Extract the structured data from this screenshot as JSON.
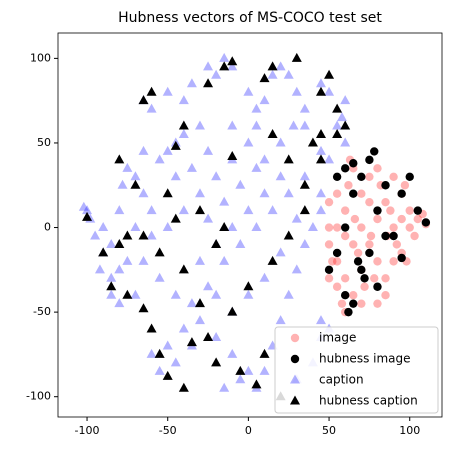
{
  "chart_data": {
    "type": "scatter",
    "title": "Hubness vectors of MS-COCO test set",
    "xlim": [
      -118,
      120
    ],
    "ylim": [
      -112,
      115
    ],
    "xticks": [
      -100,
      -50,
      0,
      50,
      100
    ],
    "yticks": [
      -100,
      -50,
      0,
      50,
      100
    ],
    "legend": "lower right",
    "series": [
      {
        "name": "image",
        "color": "red",
        "marker": "o",
        "alpha": 0.3,
        "x": [
          50,
          55,
          55,
          60,
          60,
          65,
          70,
          60,
          70,
          75,
          80,
          65,
          70,
          75,
          80,
          85,
          90,
          95,
          100,
          105,
          100,
          95,
          90,
          85,
          80,
          75,
          65,
          70,
          60,
          55,
          50,
          50,
          55,
          85,
          80,
          90,
          95,
          110,
          103,
          88,
          78,
          68,
          62,
          72,
          82,
          92,
          97,
          58,
          66,
          76,
          86,
          50,
          52,
          63,
          98,
          108
        ],
        "y": [
          -10,
          -20,
          0,
          10,
          -30,
          -40,
          -45,
          -50,
          20,
          30,
          35,
          35,
          0,
          -10,
          -20,
          -30,
          -20,
          -15,
          0,
          5,
          10,
          20,
          30,
          15,
          5,
          15,
          -10,
          -25,
          -5,
          -35,
          -30,
          15,
          20,
          -40,
          -45,
          0,
          5,
          2,
          -5,
          10,
          -30,
          -15,
          25,
          -35,
          25,
          -10,
          25,
          -45,
          5,
          -5,
          -5,
          0,
          -20,
          40,
          -20,
          8
        ]
      },
      {
        "name": "hubness image",
        "color": "black",
        "marker": "o",
        "alpha": 1,
        "x": [
          60,
          65,
          75,
          78,
          70,
          100,
          105,
          110,
          95,
          80,
          85,
          70,
          60,
          65,
          72,
          80,
          90,
          55,
          50,
          60,
          75,
          65,
          55,
          85,
          62,
          68,
          95
        ],
        "y": [
          35,
          38,
          40,
          45,
          30,
          30,
          10,
          3,
          20,
          10,
          -5,
          -25,
          -40,
          -45,
          -30,
          -35,
          -5,
          -15,
          -25,
          0,
          -15,
          20,
          30,
          25,
          -50,
          -20,
          -18
        ]
      },
      {
        "name": "caption",
        "color": "blue",
        "marker": "^",
        "alpha": 0.3,
        "x": [
          -100,
          -98,
          -102,
          -95,
          -90,
          -92,
          -85,
          -80,
          -85,
          -75,
          -80,
          -78,
          -75,
          -70,
          -65,
          -55,
          -50,
          -45,
          -40,
          -30,
          -60,
          -50,
          -65,
          -40,
          -35,
          -20,
          -25,
          -15,
          -10,
          0,
          5,
          10,
          15,
          20,
          25,
          30,
          35,
          28,
          20,
          10,
          0,
          -10,
          -20,
          -30,
          -40,
          -50,
          -60,
          -65,
          -55,
          -45,
          -35,
          -25,
          -15,
          -5,
          5,
          15,
          25,
          35,
          45,
          45,
          40,
          35,
          30,
          25,
          20,
          15,
          10,
          5,
          0,
          -10,
          -20,
          -30,
          -40,
          -50,
          -60,
          -55,
          -45,
          -35,
          45,
          45,
          50,
          -20,
          -10,
          0,
          10,
          20,
          -25,
          -15,
          -5,
          5,
          -30,
          -20,
          -10,
          0,
          10,
          20,
          30,
          -70,
          -60,
          -85,
          -90,
          45,
          50,
          60,
          58,
          55,
          60,
          50,
          45,
          -5,
          -15,
          40,
          30,
          35,
          -45,
          -35,
          -25,
          -10,
          5,
          -65,
          -80,
          -70
        ],
        "y": [
          10,
          5,
          12,
          -5,
          -15,
          -25,
          -30,
          -45,
          -40,
          -20,
          10,
          25,
          35,
          30,
          20,
          40,
          45,
          50,
          55,
          60,
          70,
          80,
          75,
          75,
          85,
          90,
          95,
          100,
          95,
          80,
          70,
          75,
          90,
          95,
          90,
          80,
          70,
          60,
          50,
          40,
          50,
          40,
          30,
          20,
          10,
          0,
          -5,
          -20,
          -30,
          -40,
          -45,
          -35,
          -20,
          -10,
          0,
          10,
          20,
          30,
          20,
          10,
          0,
          -10,
          -25,
          -40,
          -55,
          -70,
          -85,
          -95,
          -85,
          -75,
          -65,
          -55,
          -60,
          -70,
          -75,
          -85,
          -80,
          -70,
          -65,
          -55,
          -60,
          -10,
          0,
          10,
          20,
          30,
          5,
          15,
          25,
          35,
          -20,
          -40,
          -50,
          -40,
          -30,
          -15,
          5,
          0,
          10,
          -10,
          0,
          85,
          80,
          75,
          65,
          60,
          50,
          40,
          45,
          -90,
          -95,
          -80,
          -90,
          60,
          30,
          35,
          45,
          60,
          60,
          45,
          -25,
          -40
        ]
      },
      {
        "name": "hubness caption",
        "color": "black",
        "marker": "^",
        "alpha": 1,
        "x": [
          -100,
          -90,
          -85,
          -80,
          -75,
          -65,
          -60,
          -55,
          -50,
          -40,
          -35,
          -30,
          -25,
          -20,
          -5,
          10,
          5,
          20,
          -10,
          0,
          15,
          25,
          35,
          45,
          40,
          45,
          55,
          60,
          55,
          45,
          50,
          30,
          15,
          10,
          -10,
          -15,
          -25,
          -40,
          -45,
          -60,
          -65,
          -80,
          -70,
          -50,
          -30,
          -15,
          -40,
          -55,
          -65,
          -75,
          -20,
          15,
          25,
          35,
          -10,
          -45
        ],
        "y": [
          6,
          -15,
          -35,
          -10,
          -40,
          -48,
          -60,
          -75,
          -88,
          -95,
          -68,
          -45,
          -65,
          -80,
          -85,
          -75,
          -93,
          -100,
          -50,
          -35,
          -20,
          -5,
          10,
          40,
          50,
          55,
          55,
          60,
          70,
          80,
          90,
          100,
          95,
          88,
          98,
          95,
          85,
          60,
          48,
          80,
          75,
          40,
          25,
          20,
          10,
          0,
          -25,
          -15,
          -5,
          -5,
          -10,
          55,
          40,
          25,
          42,
          5
        ]
      }
    ]
  }
}
